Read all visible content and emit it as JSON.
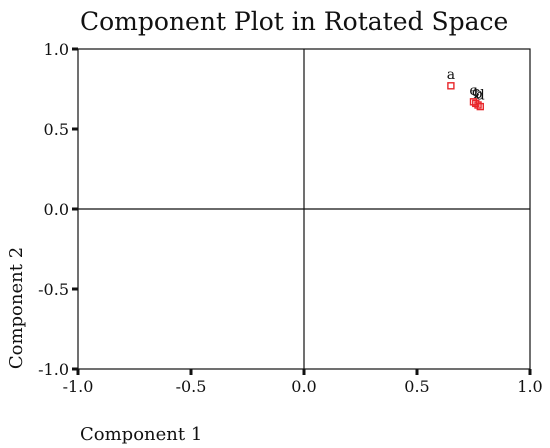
{
  "chart_data": {
    "type": "scatter",
    "title": "Component Plot in Rotated Space",
    "xlabel": "Component 1",
    "ylabel": "Component 2",
    "xlim": [
      -1.0,
      1.0
    ],
    "ylim": [
      -1.0,
      1.0
    ],
    "x_ticks": [
      "-1.0",
      "-0.5",
      "0.0",
      "0.5",
      "1.0"
    ],
    "y_ticks": [
      "-1.0",
      "-0.5",
      "0.0",
      "0.5",
      "1.0"
    ],
    "x_tick_values": [
      -1.0,
      -0.5,
      0.0,
      0.5,
      1.0
    ],
    "y_tick_values": [
      -1.0,
      -0.5,
      0.0,
      0.5,
      1.0
    ],
    "grid": false,
    "reference_lines": [
      0.0
    ],
    "marker_color": "#e8262a",
    "points": [
      {
        "label": "a",
        "x": 0.65,
        "y": 0.77
      },
      {
        "label": "e",
        "x": 0.75,
        "y": 0.67
      },
      {
        "label": "c",
        "x": 0.76,
        "y": 0.66
      },
      {
        "label": "b",
        "x": 0.77,
        "y": 0.65
      },
      {
        "label": "d",
        "x": 0.78,
        "y": 0.64
      }
    ]
  }
}
